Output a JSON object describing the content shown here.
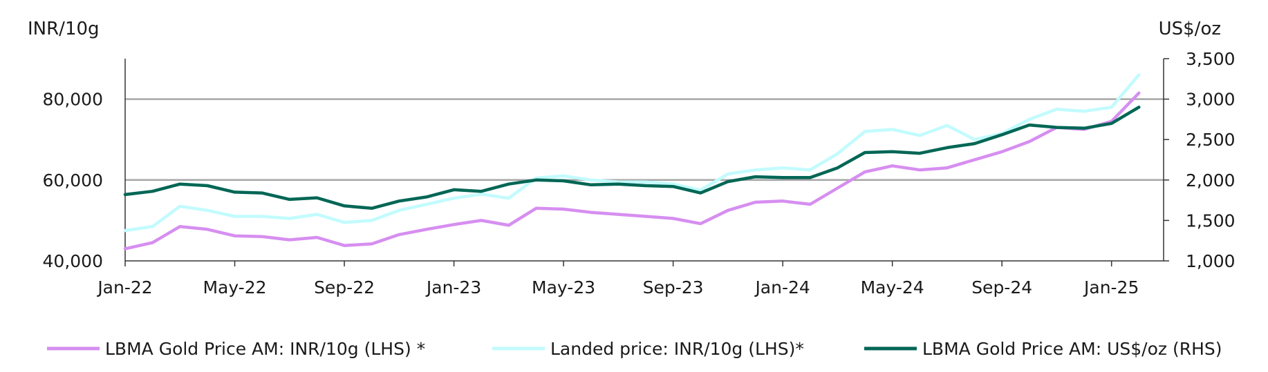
{
  "chart_data": {
    "type": "line",
    "left_axis": {
      "label": "INR/10g",
      "ylim": [
        40000,
        90000
      ],
      "ticks": [
        "40,000",
        "60,000",
        "80,000"
      ],
      "tick_values": [
        40000,
        60000,
        80000
      ]
    },
    "right_axis": {
      "label": "US$/oz",
      "ylim": [
        1000,
        3500
      ],
      "ticks": [
        "1,000",
        "1,500",
        "2,000",
        "2,500",
        "3,000",
        "3,500"
      ],
      "tick_values": [
        1000,
        1500,
        2000,
        2500,
        3000,
        3500
      ]
    },
    "x_axis": {
      "ticks": [
        "Jan-22",
        "May-22",
        "Sep-22",
        "Jan-23",
        "May-23",
        "Sep-23",
        "Jan-24",
        "May-24",
        "Sep-24",
        "Jan-25"
      ],
      "xlim": [
        "2022-01-01",
        "2025-02-28"
      ]
    },
    "grid": {
      "horizontal_at_left_values": [
        60000,
        80000
      ]
    },
    "legend_position": "bottom",
    "colors": {
      "lbma_inr": "#d68ef0",
      "landed": "#c2fbfd",
      "lbma_usd": "#006655"
    },
    "x": [
      "Jan-22",
      "Feb-22",
      "Mar-22",
      "Apr-22",
      "May-22",
      "Jun-22",
      "Jul-22",
      "Aug-22",
      "Sep-22",
      "Oct-22",
      "Nov-22",
      "Dec-22",
      "Jan-23",
      "Feb-23",
      "Mar-23",
      "Apr-23",
      "May-23",
      "Jun-23",
      "Jul-23",
      "Aug-23",
      "Sep-23",
      "Oct-23",
      "Nov-23",
      "Dec-23",
      "Jan-24",
      "Feb-24",
      "Mar-24",
      "Apr-24",
      "May-24",
      "Jun-24",
      "Jul-24",
      "Aug-24",
      "Sep-24",
      "Oct-24",
      "Nov-24",
      "Dec-24",
      "Jan-25",
      "Feb-25"
    ],
    "series": [
      {
        "name": "LBMA Gold Price AM: INR/10g (LHS) *",
        "axis": "left",
        "values": [
          43000,
          44500,
          48500,
          47800,
          46200,
          46000,
          45200,
          45800,
          43800,
          44200,
          46500,
          47800,
          49000,
          50000,
          48800,
          53000,
          52800,
          52000,
          51500,
          51000,
          50500,
          49200,
          52500,
          54500,
          54800,
          54000,
          58000,
          62000,
          63500,
          62500,
          63000,
          65000,
          67000,
          69500,
          73000,
          72500,
          74500,
          81500
        ]
      },
      {
        "name": "Landed price: INR/10g (LHS)*",
        "axis": "left",
        "values": [
          47500,
          48500,
          53500,
          52500,
          51000,
          51000,
          50500,
          51500,
          49500,
          50000,
          52500,
          54000,
          55500,
          56500,
          55500,
          60500,
          61000,
          60000,
          59500,
          59500,
          59000,
          57500,
          61500,
          62500,
          63000,
          62500,
          66500,
          72000,
          72500,
          71000,
          73500,
          70000,
          71500,
          75000,
          77500,
          77000,
          78000,
          86000
        ]
      },
      {
        "name": "LBMA Gold Price AM: US$/oz (RHS)",
        "axis": "right",
        "values": [
          1820,
          1860,
          1950,
          1930,
          1850,
          1840,
          1760,
          1780,
          1680,
          1650,
          1740,
          1790,
          1880,
          1860,
          1950,
          2000,
          1990,
          1940,
          1950,
          1930,
          1920,
          1840,
          1980,
          2040,
          2030,
          2030,
          2150,
          2340,
          2350,
          2330,
          2400,
          2450,
          2560,
          2680,
          2650,
          2640,
          2700,
          2900
        ]
      }
    ]
  }
}
